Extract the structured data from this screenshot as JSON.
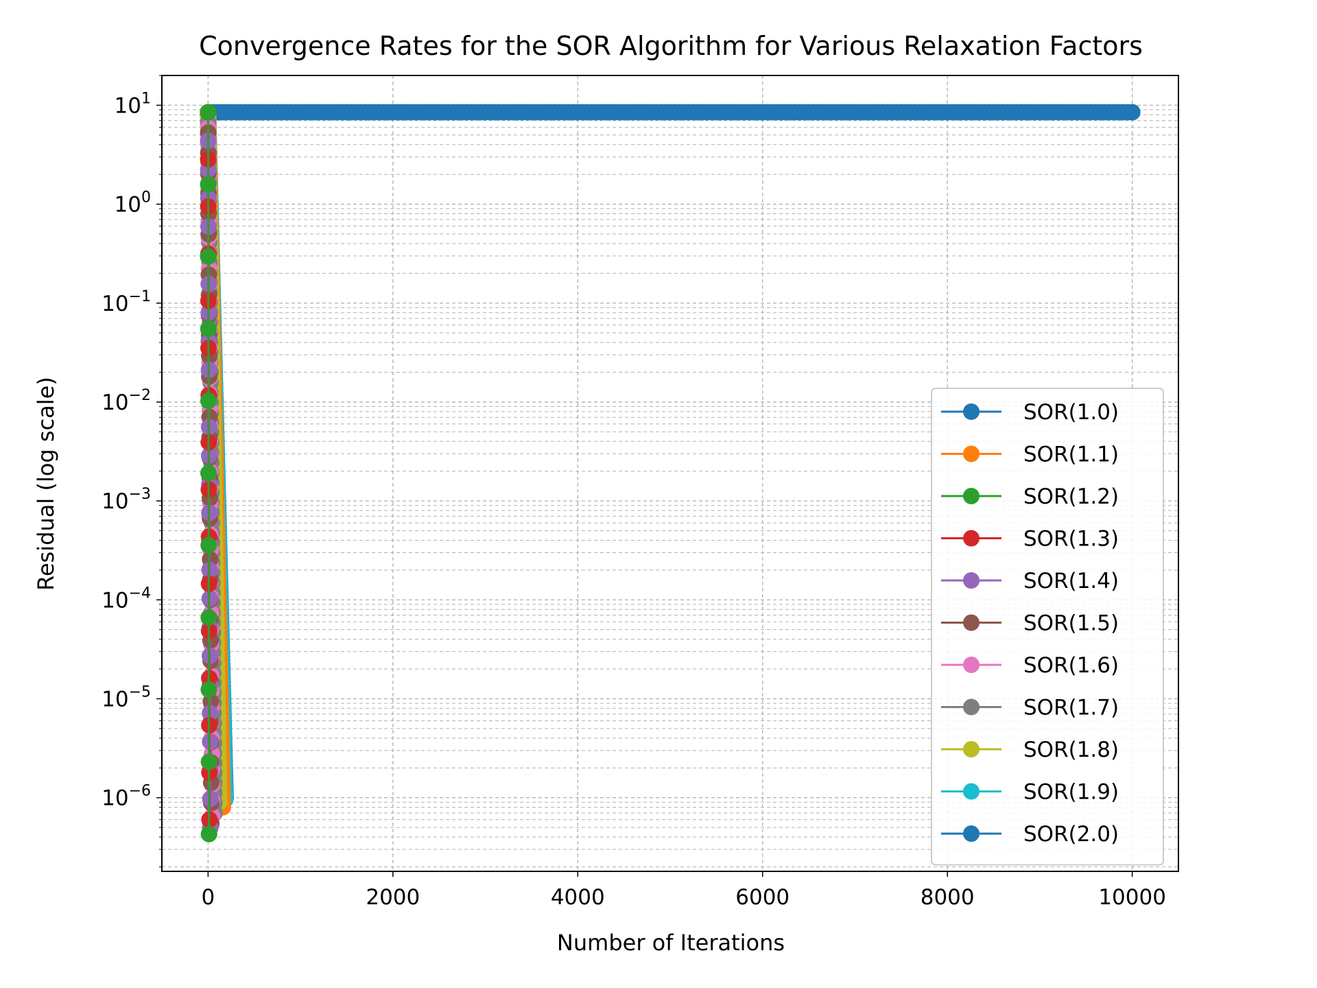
{
  "chart_data": {
    "type": "line",
    "title": "Convergence Rates for the SOR Algorithm for Various Relaxation Factors",
    "xlabel": "Number of Iterations",
    "ylabel": "Residual (log scale)",
    "xlim": [
      -500,
      10500
    ],
    "ylim": [
      1.8e-07,
      20
    ],
    "yscale": "log",
    "grid": "both (major and minor), dashed",
    "legend_position": "lower-right",
    "x_ticks": [
      0,
      2000,
      4000,
      6000,
      8000,
      10000
    ],
    "x_tick_labels": [
      "0",
      "2000",
      "4000",
      "6000",
      "8000",
      "10000"
    ],
    "y_tick_exponents": [
      -6,
      -5,
      -4,
      -3,
      -2,
      -1,
      0,
      1
    ],
    "y_tick_base": "10",
    "series": [
      {
        "name": "SOR(1.0)",
        "color": "#1f77b4",
        "start": 8.5,
        "end": 1e-06,
        "iterations": 190
      },
      {
        "name": "SOR(1.1)",
        "color": "#ff7f0e",
        "start": 8.5,
        "end": 8e-07,
        "iterations": 160
      },
      {
        "name": "SOR(1.2)",
        "color": "#2ca02c",
        "start": 8.5,
        "end": 4.3e-07,
        "iterations": 10
      },
      {
        "name": "SOR(1.3)",
        "color": "#d62728",
        "start": 8.5,
        "end": 6e-07,
        "iterations": 15
      },
      {
        "name": "SOR(1.4)",
        "color": "#9467bd",
        "start": 8.5,
        "end": 5e-07,
        "iterations": 25
      },
      {
        "name": "SOR(1.5)",
        "color": "#8c564b",
        "start": 8.5,
        "end": 5.5e-07,
        "iterations": 35
      },
      {
        "name": "SOR(1.6)",
        "color": "#e377c2",
        "start": 8.5,
        "end": 6.5e-07,
        "iterations": 45
      },
      {
        "name": "SOR(1.7)",
        "color": "#7f7f7f",
        "start": 8.5,
        "end": 7e-07,
        "iterations": 70
      },
      {
        "name": "SOR(1.8)",
        "color": "#bcbd22",
        "start": 8.5,
        "end": 9e-07,
        "iterations": 120
      },
      {
        "name": "SOR(1.9)",
        "color": "#17becf",
        "start": 8.5,
        "end": 9.5e-07,
        "iterations": 185
      },
      {
        "name": "SOR(2.0)",
        "color": "#1f77b4",
        "start": 8.5,
        "end": 8.5,
        "iterations": 10000
      }
    ]
  }
}
